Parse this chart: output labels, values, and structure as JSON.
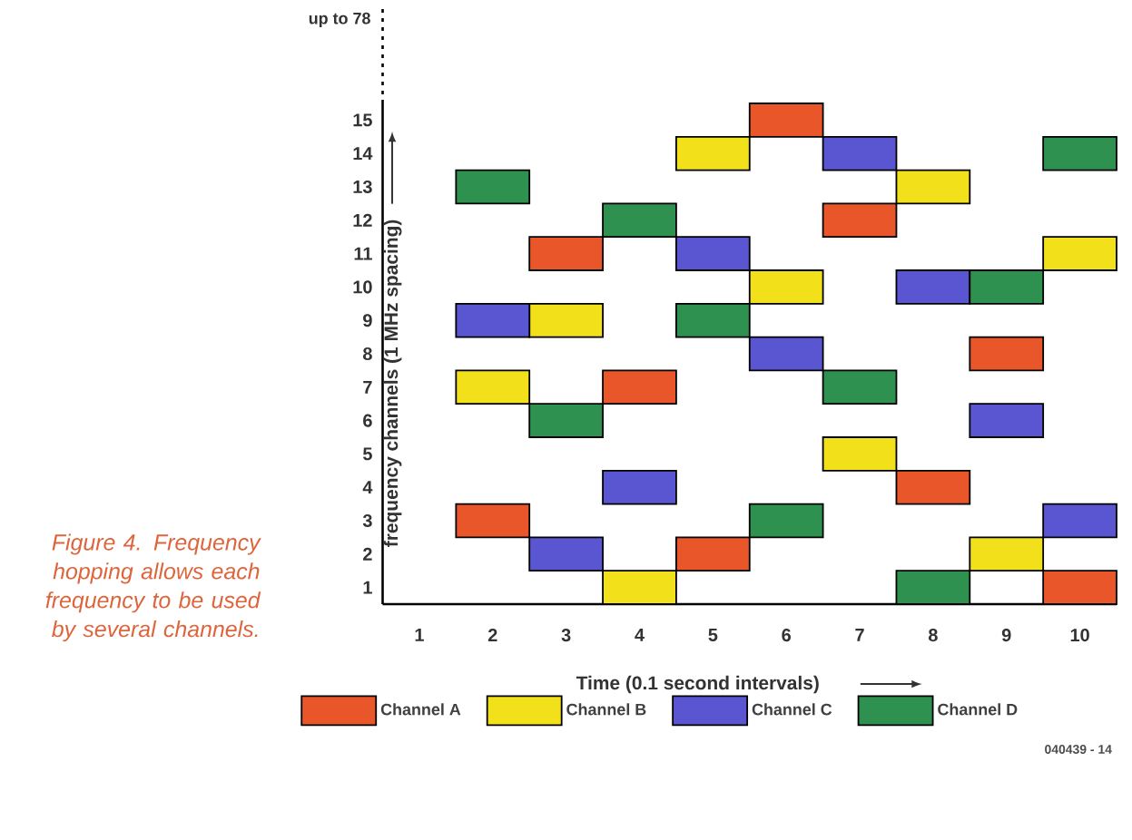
{
  "chart_data": {
    "type": "bar",
    "xlabel": "Time (0.1 second intervals)",
    "ylabel": "frequency channels (1 MHz spacing)",
    "categories": [
      "1",
      "2",
      "3",
      "4",
      "5",
      "6",
      "7",
      "8",
      "9",
      "10"
    ],
    "ylim": [
      0.5,
      15.5
    ],
    "yticks": [
      1,
      2,
      3,
      4,
      5,
      6,
      7,
      8,
      9,
      10,
      11,
      12,
      13,
      14,
      15
    ],
    "legend": "bottom",
    "annotations": [
      "up to 78",
      "Figure 4. Frequency hopping allows each frequency to be used by several channels.",
      "040439 - 14"
    ],
    "series": [
      {
        "name": "Channel A",
        "color": "#e8562a",
        "base": [
          null,
          2.5,
          10.5,
          6.5,
          1.5,
          14.5,
          11.5,
          3.5,
          7.5,
          0.5
        ],
        "values": [
          null,
          1,
          1,
          1,
          1,
          1,
          1,
          1,
          1,
          1
        ]
      },
      {
        "name": "Channel B",
        "color": "#f2e01a",
        "base": [
          null,
          6.5,
          8.5,
          0.5,
          13.5,
          9.5,
          4.5,
          12.5,
          1.5,
          10.5
        ],
        "values": [
          null,
          1,
          1,
          1,
          1,
          1,
          1,
          1,
          1,
          1
        ]
      },
      {
        "name": "Channel C",
        "color": "#5a55d0",
        "base": [
          null,
          8.5,
          1.5,
          3.5,
          10.5,
          7.5,
          13.5,
          9.5,
          5.5,
          2.5
        ],
        "values": [
          null,
          1,
          1,
          1,
          1,
          1,
          1,
          1,
          1,
          1
        ]
      },
      {
        "name": "Channel D",
        "color": "#2e9150",
        "base": [
          null,
          12.5,
          5.5,
          11.5,
          8.5,
          2.5,
          6.5,
          0.5,
          9.5,
          13.5
        ],
        "values": [
          null,
          1,
          1,
          1,
          1,
          1,
          1,
          1,
          1,
          1
        ]
      }
    ]
  }
}
